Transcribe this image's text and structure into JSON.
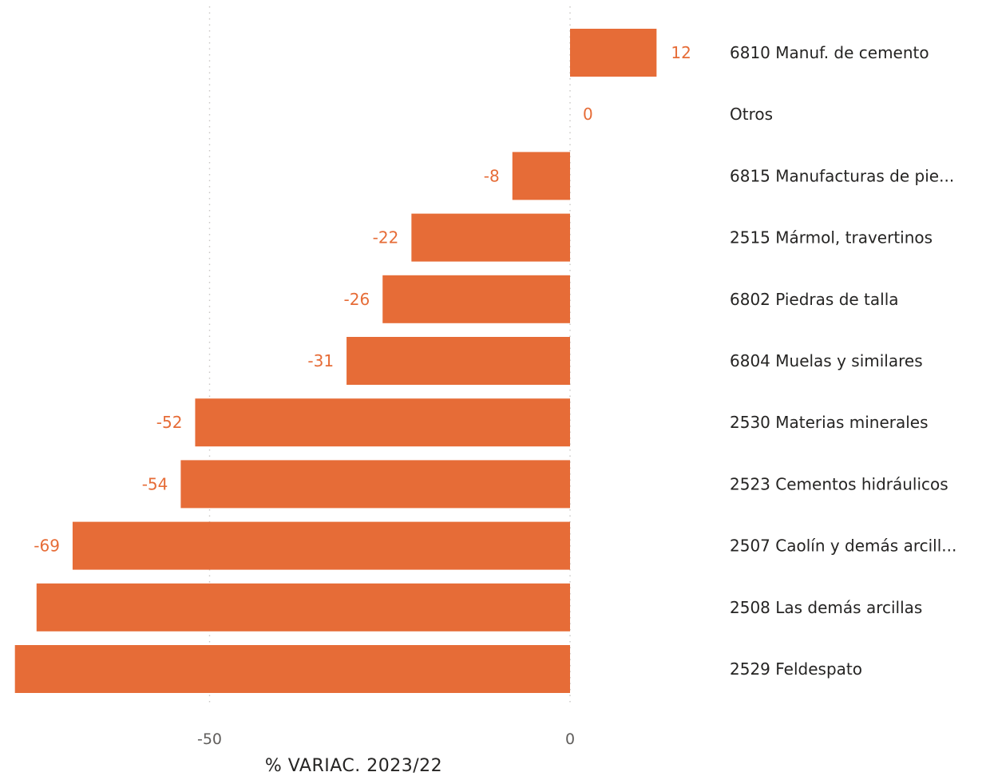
{
  "colors": {
    "bar": "#E66C37",
    "label": "#E66C37",
    "grid": "#C8C6C4",
    "text": "#252423",
    "tick": "#605E5C"
  },
  "chart_data": {
    "type": "bar",
    "orientation": "horizontal",
    "categories": [
      "6810 Manuf. de cemento",
      "Otros",
      "6815 Manufacturas de pie...",
      "2515 Mármol, travertinos",
      "6802 Piedras de talla",
      "6804 Muelas y similares",
      "2530 Materias minerales",
      "2523 Cementos hidráulicos",
      "2507 Caolín y demás arcill...",
      "2508 Las demás arcillas",
      "2529 Feldespato"
    ],
    "values": [
      12,
      0,
      -8,
      -22,
      -26,
      -31,
      -52,
      -54,
      -69,
      -74,
      -77
    ],
    "value_labels": [
      "12",
      "0",
      "-8",
      "-22",
      "-26",
      "-31",
      "-52",
      "-54",
      "-69",
      "",
      ""
    ],
    "xlabel": "% VARIAC. 2023/22",
    "xticks": [
      -50,
      0
    ],
    "xtick_labels": [
      "-50",
      "0"
    ],
    "xlim": [
      -79,
      22
    ],
    "grid": "vertical dotted",
    "legend": "none"
  }
}
